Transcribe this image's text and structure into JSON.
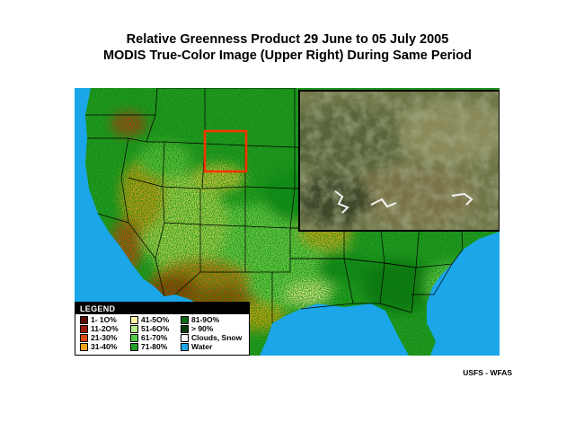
{
  "title_line1": "Relative Greenness Product  29 June to 05 July 2005",
  "title_line2": "MODIS True-Color Image (Upper Right) During Same Period",
  "legend": {
    "header": "LEGEND",
    "items": [
      {
        "label": "1- 1O%",
        "color": "#5a0c06"
      },
      {
        "label": "11-2O%",
        "color": "#9c1a0a"
      },
      {
        "label": "21-30%",
        "color": "#dd4a10"
      },
      {
        "label": "31-40%",
        "color": "#f2a31c"
      },
      {
        "label": "41-5O%",
        "color": "#fbf2a4"
      },
      {
        "label": "51-6O%",
        "color": "#b8ec90"
      },
      {
        "label": "61-70%",
        "color": "#55cc48"
      },
      {
        "label": "71-80%",
        "color": "#229f2a"
      },
      {
        "label": "81-9O%",
        "color": "#0d6a18"
      },
      {
        "label": "> 90%",
        "color": "#063d0a"
      },
      {
        "label": "Clouds, Snow",
        "color": "#ffffff"
      },
      {
        "label": "Water",
        "color": "#1aa6e8"
      }
    ]
  },
  "credit": "USFS - WFAS",
  "colors": {
    "water": "#1aa6e8",
    "highlight_box": "#ff3300",
    "state_lines": "#000000"
  }
}
